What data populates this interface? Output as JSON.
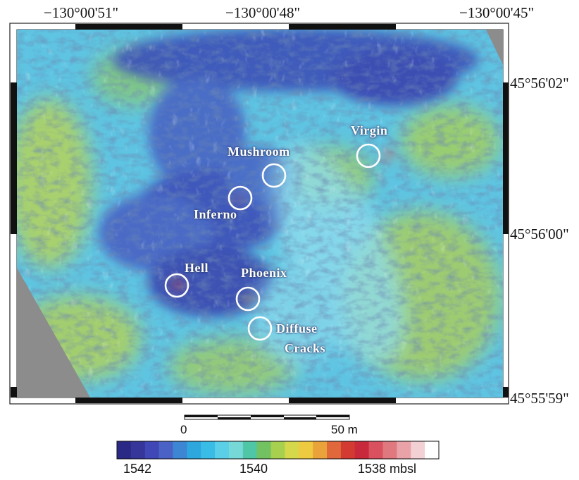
{
  "axes": {
    "lon_labels": [
      "−130°00'51\"",
      "−130°00'48\"",
      "−130°00'45\""
    ],
    "lat_labels": [
      "45°56'02\"",
      "45°56'00\"",
      "45°55'59\""
    ]
  },
  "vents": [
    {
      "id": "virgin",
      "label": "Virgin",
      "hydrothermal": true
    },
    {
      "id": "mushroom",
      "label": "Mushroom",
      "hydrothermal": false
    },
    {
      "id": "inferno",
      "label": "Inferno",
      "hydrothermal": true
    },
    {
      "id": "hell",
      "label": "Hell",
      "hydrothermal": true
    },
    {
      "id": "phoenix",
      "label": "Phoenix",
      "hydrothermal": true
    },
    {
      "id": "diffuse",
      "label_line1": "Diffuse",
      "label_line2": "Cracks",
      "hydrothermal": false
    }
  ],
  "scale_bar": {
    "start_label": "0",
    "end_label": "50 m"
  },
  "colorbar": {
    "labels": [
      "1542",
      "1540",
      "1538 mbsl"
    ],
    "colors": [
      "#2a2a86",
      "#35359a",
      "#3f48b6",
      "#4a62c6",
      "#3d86d4",
      "#2ea6de",
      "#39bce6",
      "#5ccfe8",
      "#77d8d8",
      "#4fc6a6",
      "#72c262",
      "#a6d04e",
      "#d4d84a",
      "#eeca40",
      "#eaa33a",
      "#e0683a",
      "#d23a32",
      "#c82a3c",
      "#d9505e",
      "#e07880",
      "#e8a2a8",
      "#f2d0d4",
      "#ffffff"
    ]
  },
  "colors": {
    "deep": "#3a4fb8",
    "mid": "#5dc3e2",
    "shallow": "#d6d84c",
    "nodata": "#8c8c8c",
    "annotation": "#ffffff"
  }
}
